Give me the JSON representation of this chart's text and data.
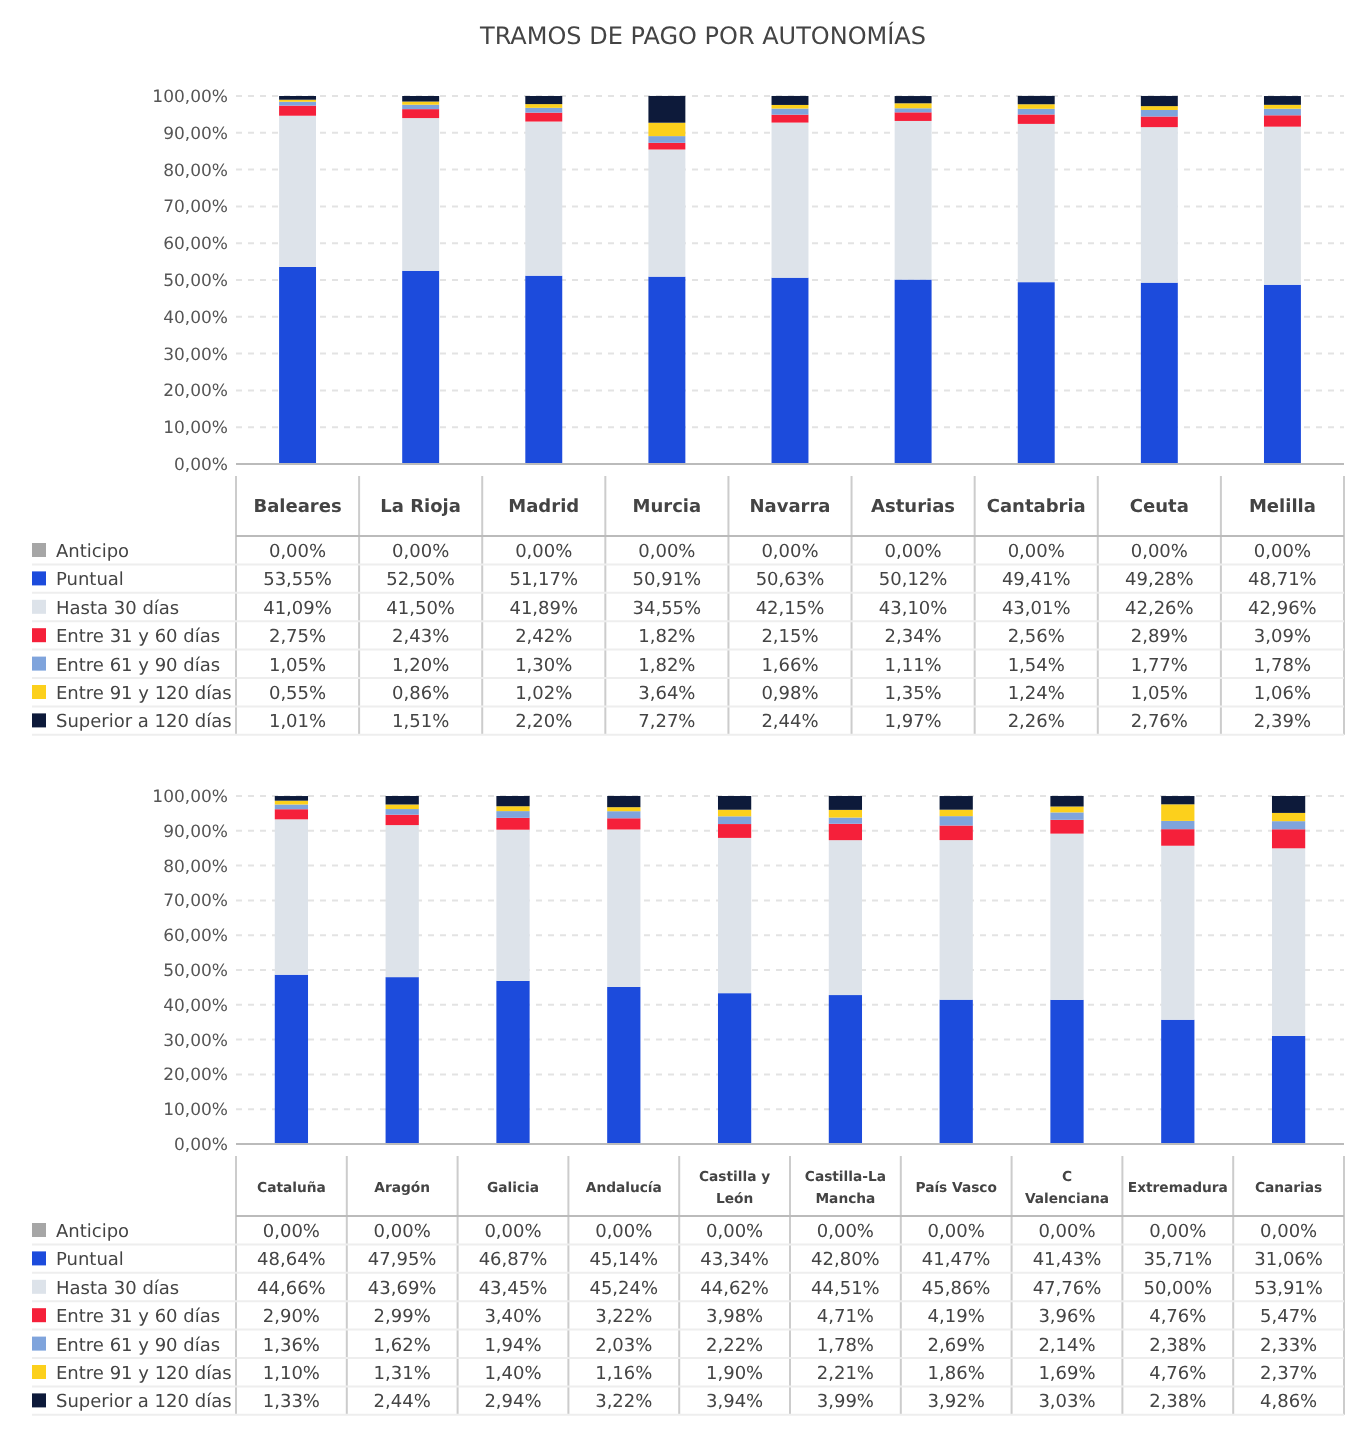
{
  "chart_data": [
    {
      "type": "bar",
      "title": "TRAMOS DE PAGO POR AUTONOMÍAS",
      "stacked": true,
      "grid": "y",
      "legend": "bottom left",
      "ylim": [
        0,
        100
      ],
      "yticks": [
        {
          "value": 0,
          "label": "0,00%"
        },
        {
          "value": 10,
          "label": "10,00%"
        },
        {
          "value": 20,
          "label": "20,00%"
        },
        {
          "value": 30,
          "label": "30,00%"
        },
        {
          "value": 40,
          "label": "40,00%"
        },
        {
          "value": 50,
          "label": "50,00%"
        },
        {
          "value": 60,
          "label": "60,00%"
        },
        {
          "value": 70,
          "label": "70,00%"
        },
        {
          "value": 80,
          "label": "80,00%"
        },
        {
          "value": 90,
          "label": "90,00%"
        },
        {
          "value": 100,
          "label": "100,00%"
        }
      ],
      "categories": [
        "Baleares",
        "La Rioja",
        "Madrid",
        "Murcia",
        "Navarra",
        "Asturias",
        "Cantabria",
        "Ceuta",
        "Melilla"
      ],
      "series": [
        {
          "name": "Anticipo",
          "color": "#a6a6a6",
          "values": [
            0,
            0,
            0,
            0,
            0,
            0,
            0,
            0,
            0
          ],
          "value_labels": [
            "0,00%",
            "0,00%",
            "0,00%",
            "0,00%",
            "0,00%",
            "0,00%",
            "0,00%",
            "0,00%",
            "0,00%"
          ]
        },
        {
          "name": "Puntual",
          "color": "#1c4bdc",
          "values": [
            53.55,
            52.5,
            51.17,
            50.91,
            50.63,
            50.12,
            49.41,
            49.28,
            48.71
          ],
          "value_labels": [
            "53,55%",
            "52,50%",
            "51,17%",
            "50,91%",
            "50,63%",
            "50,12%",
            "49,41%",
            "49,28%",
            "48,71%"
          ]
        },
        {
          "name": "Hasta 30 días",
          "color": "#dde3ea",
          "values": [
            41.09,
            41.5,
            41.89,
            34.55,
            42.15,
            43.1,
            43.01,
            42.26,
            42.96
          ],
          "value_labels": [
            "41,09%",
            "41,50%",
            "41,89%",
            "34,55%",
            "42,15%",
            "43,10%",
            "43,01%",
            "42,26%",
            "42,96%"
          ]
        },
        {
          "name": "Entre 31 y 60 días",
          "color": "#f5203a",
          "values": [
            2.75,
            2.43,
            2.42,
            1.82,
            2.15,
            2.34,
            2.56,
            2.89,
            3.09
          ],
          "value_labels": [
            "2,75%",
            "2,43%",
            "2,42%",
            "1,82%",
            "2,15%",
            "2,34%",
            "2,56%",
            "2,89%",
            "3,09%"
          ]
        },
        {
          "name": "Entre 61 y 90 días",
          "color": "#7fa4dc",
          "values": [
            1.05,
            1.2,
            1.3,
            1.82,
            1.66,
            1.11,
            1.54,
            1.77,
            1.78
          ],
          "value_labels": [
            "1,05%",
            "1,20%",
            "1,30%",
            "1,82%",
            "1,66%",
            "1,11%",
            "1,54%",
            "1,77%",
            "1,78%"
          ]
        },
        {
          "name": "Entre 91 y 120 días",
          "color": "#fcd01c",
          "values": [
            0.55,
            0.86,
            1.02,
            3.64,
            0.98,
            1.35,
            1.24,
            1.05,
            1.06
          ],
          "value_labels": [
            "0,55%",
            "0,86%",
            "1,02%",
            "3,64%",
            "0,98%",
            "1,35%",
            "1,24%",
            "1,05%",
            "1,06%"
          ]
        },
        {
          "name": "Superior a 120 días",
          "color": "#0d1a3a",
          "values": [
            1.01,
            1.51,
            2.2,
            7.27,
            2.44,
            1.97,
            2.26,
            2.76,
            2.39
          ],
          "value_labels": [
            "1,01%",
            "1,51%",
            "2,20%",
            "7,27%",
            "2,44%",
            "1,97%",
            "2,26%",
            "2,76%",
            "2,39%"
          ]
        }
      ]
    },
    {
      "type": "bar",
      "stacked": true,
      "grid": "y",
      "legend": "bottom left",
      "ylim": [
        0,
        100
      ],
      "yticks": [
        {
          "value": 0,
          "label": "0,00%"
        },
        {
          "value": 10,
          "label": "10,00%"
        },
        {
          "value": 20,
          "label": "20,00%"
        },
        {
          "value": 30,
          "label": "30,00%"
        },
        {
          "value": 40,
          "label": "40,00%"
        },
        {
          "value": 50,
          "label": "50,00%"
        },
        {
          "value": 60,
          "label": "60,00%"
        },
        {
          "value": 70,
          "label": "70,00%"
        },
        {
          "value": 80,
          "label": "80,00%"
        },
        {
          "value": 90,
          "label": "90,00%"
        },
        {
          "value": 100,
          "label": "100,00%"
        }
      ],
      "categories": [
        "Cataluña",
        "Aragón",
        "Galicia",
        "Andalucía",
        "Castilla y León",
        "Castilla-La Mancha",
        "País Vasco",
        "C Valenciana",
        "Extremadura",
        "Canarias"
      ],
      "series": [
        {
          "name": "Anticipo",
          "color": "#a6a6a6",
          "values": [
            0,
            0,
            0,
            0,
            0,
            0,
            0,
            0,
            0,
            0
          ],
          "value_labels": [
            "0,00%",
            "0,00%",
            "0,00%",
            "0,00%",
            "0,00%",
            "0,00%",
            "0,00%",
            "0,00%",
            "0,00%",
            "0,00%"
          ]
        },
        {
          "name": "Puntual",
          "color": "#1c4bdc",
          "values": [
            48.64,
            47.95,
            46.87,
            45.14,
            43.34,
            42.8,
            41.47,
            41.43,
            35.71,
            31.06
          ],
          "value_labels": [
            "48,64%",
            "47,95%",
            "46,87%",
            "45,14%",
            "43,34%",
            "42,80%",
            "41,47%",
            "41,43%",
            "35,71%",
            "31,06%"
          ]
        },
        {
          "name": "Hasta 30 días",
          "color": "#dde3ea",
          "values": [
            44.66,
            43.69,
            43.45,
            45.24,
            44.62,
            44.51,
            45.86,
            47.76,
            50.0,
            53.91
          ],
          "value_labels": [
            "44,66%",
            "43,69%",
            "43,45%",
            "45,24%",
            "44,62%",
            "44,51%",
            "45,86%",
            "47,76%",
            "50,00%",
            "53,91%"
          ]
        },
        {
          "name": "Entre 31 y 60 días",
          "color": "#f5203a",
          "values": [
            2.9,
            2.99,
            3.4,
            3.22,
            3.98,
            4.71,
            4.19,
            3.96,
            4.76,
            5.47
          ],
          "value_labels": [
            "2,90%",
            "2,99%",
            "3,40%",
            "3,22%",
            "3,98%",
            "4,71%",
            "4,19%",
            "3,96%",
            "4,76%",
            "5,47%"
          ]
        },
        {
          "name": "Entre 61 y 90 días",
          "color": "#7fa4dc",
          "values": [
            1.36,
            1.62,
            1.94,
            2.03,
            2.22,
            1.78,
            2.69,
            2.14,
            2.38,
            2.33
          ],
          "value_labels": [
            "1,36%",
            "1,62%",
            "1,94%",
            "2,03%",
            "2,22%",
            "1,78%",
            "2,69%",
            "2,14%",
            "2,38%",
            "2,33%"
          ]
        },
        {
          "name": "Entre 91 y 120 días",
          "color": "#fcd01c",
          "values": [
            1.1,
            1.31,
            1.4,
            1.16,
            1.9,
            2.21,
            1.86,
            1.69,
            4.76,
            2.37
          ],
          "value_labels": [
            "1,10%",
            "1,31%",
            "1,40%",
            "1,16%",
            "1,90%",
            "2,21%",
            "1,86%",
            "1,69%",
            "4,76%",
            "2,37%"
          ]
        },
        {
          "name": "Superior a 120 días",
          "color": "#0d1a3a",
          "values": [
            1.33,
            2.44,
            2.94,
            3.22,
            3.94,
            3.99,
            3.92,
            3.03,
            2.38,
            4.86
          ],
          "value_labels": [
            "1,33%",
            "2,44%",
            "2,94%",
            "3,22%",
            "3,94%",
            "3,99%",
            "3,92%",
            "3,03%",
            "2,38%",
            "4,86%"
          ]
        }
      ]
    }
  ]
}
